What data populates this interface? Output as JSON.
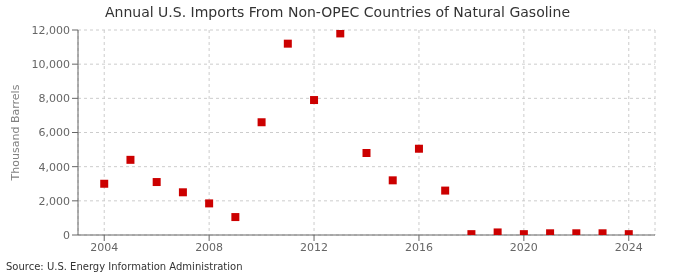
{
  "chart_data": {
    "type": "scatter",
    "title": "Annual U.S. Imports From Non-OPEC Countries of Natural Gasoline",
    "ylabel": "Thousand Barrels",
    "source": "Source: U.S. Energy Information Administration",
    "x": [
      2004,
      2005,
      2006,
      2007,
      2008,
      2009,
      2010,
      2011,
      2012,
      2013,
      2014,
      2015,
      2016,
      2017,
      2018,
      2019,
      2020,
      2021,
      2022,
      2023,
      2024
    ],
    "values": [
      3000,
      4400,
      3100,
      2500,
      1850,
      1050,
      6600,
      11200,
      7900,
      11800,
      4800,
      3200,
      5050,
      2600,
      50,
      150,
      50,
      100,
      100,
      100,
      50
    ],
    "color": "#cc0000",
    "marker": "square",
    "xlim": [
      2003,
      2025
    ],
    "xticks": [
      2004,
      2008,
      2012,
      2016,
      2020,
      2024
    ],
    "ylim": [
      0,
      12000
    ],
    "yticks": [
      0,
      {
        "value": 2000,
        "label": "2,000"
      },
      {
        "value": 4000,
        "label": "4,000"
      },
      {
        "value": 6000,
        "label": "6,000"
      },
      {
        "value": 8000,
        "label": "8,000"
      },
      {
        "value": 10000,
        "label": "10,000"
      },
      {
        "value": 12000,
        "label": "12,000"
      }
    ],
    "grid": true
  }
}
